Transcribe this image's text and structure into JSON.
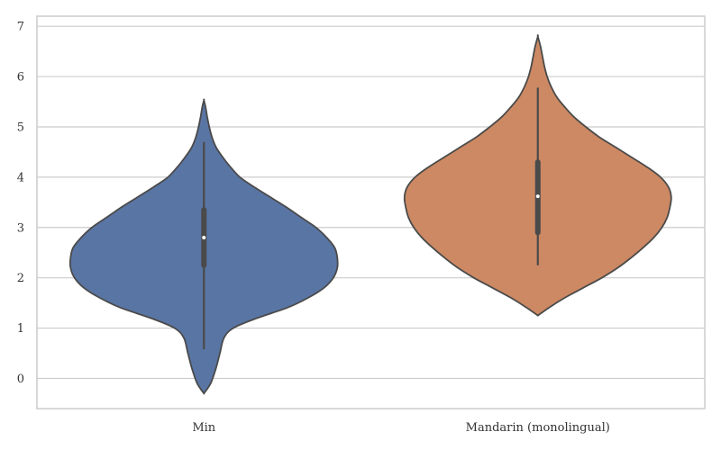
{
  "chart_data": {
    "type": "violin",
    "title": "",
    "xlabel": "",
    "ylabel": "",
    "ylim": [
      -0.6,
      7.2
    ],
    "y_ticks": [
      "0",
      "1",
      "2",
      "3",
      "4",
      "5",
      "6",
      "7"
    ],
    "grid": "horizontal",
    "categories": [
      "Min",
      "Mandarin (monolingual)"
    ],
    "series": [
      {
        "category": "Min",
        "color": "#5975a4",
        "median": 2.8,
        "q1": 2.25,
        "q3": 3.35,
        "whisker_low": 0.58,
        "whisker_high": 4.7,
        "range": [
          -0.3,
          5.53
        ],
        "density": [
          [
            -0.3,
            0.0
          ],
          [
            -0.1,
            0.05
          ],
          [
            0.2,
            0.09
          ],
          [
            0.5,
            0.12
          ],
          [
            0.8,
            0.15
          ],
          [
            1.0,
            0.22
          ],
          [
            1.2,
            0.4
          ],
          [
            1.4,
            0.62
          ],
          [
            1.6,
            0.78
          ],
          [
            1.8,
            0.9
          ],
          [
            2.0,
            0.97
          ],
          [
            2.2,
            1.0
          ],
          [
            2.4,
            1.0
          ],
          [
            2.6,
            0.98
          ],
          [
            2.8,
            0.92
          ],
          [
            3.0,
            0.84
          ],
          [
            3.2,
            0.73
          ],
          [
            3.4,
            0.62
          ],
          [
            3.6,
            0.5
          ],
          [
            3.8,
            0.38
          ],
          [
            4.0,
            0.27
          ],
          [
            4.2,
            0.2
          ],
          [
            4.4,
            0.14
          ],
          [
            4.6,
            0.09
          ],
          [
            4.8,
            0.06
          ],
          [
            5.0,
            0.04
          ],
          [
            5.2,
            0.025
          ],
          [
            5.4,
            0.012
          ],
          [
            5.53,
            0.0
          ]
        ]
      },
      {
        "category": "Mandarin (monolingual)",
        "color": "#cc8963",
        "median": 3.62,
        "q1": 2.9,
        "q3": 4.3,
        "whisker_low": 2.25,
        "whisker_high": 5.78,
        "range": [
          1.25,
          6.8
        ],
        "density": [
          [
            1.25,
            0.0
          ],
          [
            1.4,
            0.08
          ],
          [
            1.6,
            0.2
          ],
          [
            1.8,
            0.34
          ],
          [
            2.0,
            0.48
          ],
          [
            2.2,
            0.6
          ],
          [
            2.4,
            0.7
          ],
          [
            2.6,
            0.79
          ],
          [
            2.8,
            0.87
          ],
          [
            3.0,
            0.93
          ],
          [
            3.2,
            0.97
          ],
          [
            3.4,
            0.99
          ],
          [
            3.6,
            1.0
          ],
          [
            3.8,
            0.98
          ],
          [
            4.0,
            0.92
          ],
          [
            4.2,
            0.82
          ],
          [
            4.4,
            0.7
          ],
          [
            4.6,
            0.58
          ],
          [
            4.8,
            0.46
          ],
          [
            5.0,
            0.36
          ],
          [
            5.2,
            0.27
          ],
          [
            5.4,
            0.2
          ],
          [
            5.6,
            0.14
          ],
          [
            5.8,
            0.1
          ],
          [
            6.0,
            0.07
          ],
          [
            6.2,
            0.05
          ],
          [
            6.4,
            0.035
          ],
          [
            6.6,
            0.02
          ],
          [
            6.8,
            0.0
          ]
        ]
      }
    ]
  }
}
